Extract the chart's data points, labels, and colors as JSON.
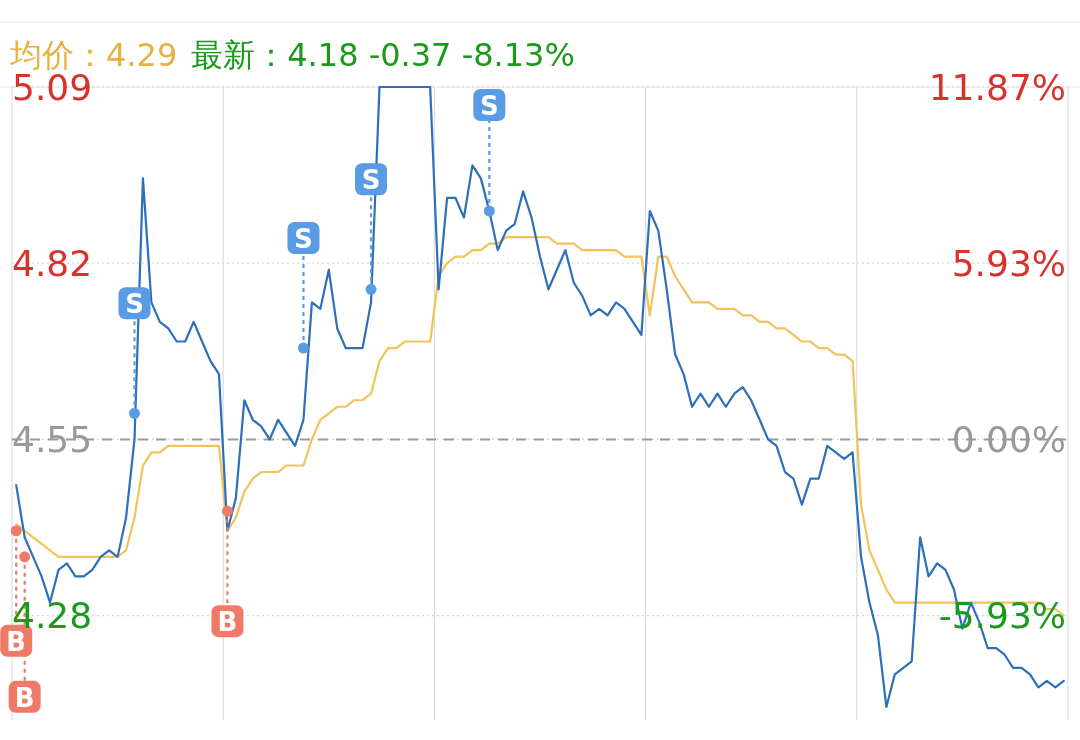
{
  "chart_data": {
    "type": "line",
    "categories": [
      null,
      null,
      null,
      null,
      null,
      null,
      null,
      null,
      null,
      null,
      null,
      null,
      null,
      null,
      null,
      null,
      null,
      null,
      null,
      null,
      null,
      null,
      null,
      null,
      null,
      null,
      null,
      null,
      null,
      null,
      null,
      null,
      null,
      null,
      null,
      null,
      null,
      null,
      null,
      null,
      null,
      null,
      null,
      null,
      null,
      null,
      null,
      null,
      null,
      null,
      null,
      null,
      null,
      null,
      null,
      null,
      null,
      null,
      null,
      null,
      null,
      null,
      null,
      null,
      null,
      null,
      null,
      null,
      null,
      null,
      null,
      null,
      null,
      null,
      null,
      null,
      null,
      null,
      null,
      null,
      null,
      null,
      null,
      null,
      null,
      null,
      null,
      null,
      null,
      null,
      null,
      null,
      null,
      null,
      null,
      null,
      null,
      null,
      null,
      null,
      null,
      null,
      null,
      null,
      null,
      null,
      null,
      null,
      null,
      null,
      null,
      null,
      null,
      null,
      null,
      null,
      null,
      null,
      null,
      null,
      null,
      null,
      null,
      null,
      null
    ],
    "series": [
      {
        "color": "#2c6fbb",
        "values": [
          4.48,
          4.4,
          4.37,
          4.34,
          4.3,
          4.35,
          4.36,
          4.34,
          4.34,
          4.35,
          4.37,
          4.38,
          4.37,
          4.43,
          4.55,
          4.95,
          4.76,
          4.73,
          4.72,
          4.7,
          4.7,
          4.73,
          4.7,
          4.67,
          4.65,
          4.41,
          4.46,
          4.61,
          4.58,
          4.57,
          4.55,
          4.58,
          4.56,
          4.54,
          4.58,
          4.76,
          4.75,
          4.81,
          4.72,
          4.69,
          4.69,
          4.69,
          4.76,
          5.09,
          5.09,
          5.09,
          5.09,
          5.09,
          5.09,
          5.09,
          4.78,
          4.92,
          4.92,
          4.89,
          4.97,
          4.95,
          4.9,
          4.84,
          4.87,
          4.88,
          4.93,
          4.89,
          4.83,
          4.78,
          4.81,
          4.84,
          4.79,
          4.77,
          4.74,
          4.75,
          4.74,
          4.76,
          4.75,
          4.73,
          4.71,
          4.9,
          4.87,
          4.78,
          4.68,
          4.65,
          4.6,
          4.62,
          4.6,
          4.62,
          4.6,
          4.62,
          4.63,
          4.61,
          4.58,
          4.55,
          4.54,
          4.5,
          4.49,
          4.45,
          4.49,
          4.49,
          4.54,
          4.53,
          4.52,
          4.53,
          4.37,
          4.3,
          4.25,
          4.14,
          4.19,
          4.2,
          4.21,
          4.4,
          4.34,
          4.36,
          4.35,
          4.32,
          4.26,
          4.3,
          4.27,
          4.23,
          4.23,
          4.22,
          4.2,
          4.2,
          4.19,
          4.17,
          4.18,
          4.17,
          4.18
        ]
      },
      {
        "color": "#f2c35a",
        "values": [
          4.42,
          4.41,
          4.4,
          4.39,
          4.38,
          4.37,
          4.37,
          4.37,
          4.37,
          4.37,
          4.37,
          4.37,
          4.37,
          4.38,
          4.43,
          4.51,
          4.53,
          4.53,
          4.54,
          4.54,
          4.54,
          4.54,
          4.54,
          4.54,
          4.54,
          4.41,
          4.43,
          4.47,
          4.49,
          4.5,
          4.5,
          4.5,
          4.51,
          4.51,
          4.51,
          4.55,
          4.58,
          4.59,
          4.6,
          4.6,
          4.61,
          4.61,
          4.62,
          4.67,
          4.69,
          4.69,
          4.7,
          4.7,
          4.7,
          4.7,
          4.8,
          4.82,
          4.83,
          4.83,
          4.84,
          4.84,
          4.85,
          4.85,
          4.86,
          4.86,
          4.86,
          4.86,
          4.86,
          4.86,
          4.85,
          4.85,
          4.85,
          4.84,
          4.84,
          4.84,
          4.84,
          4.84,
          4.83,
          4.83,
          4.83,
          4.74,
          4.83,
          4.83,
          4.8,
          4.78,
          4.76,
          4.76,
          4.76,
          4.75,
          4.75,
          4.75,
          4.74,
          4.74,
          4.73,
          4.73,
          4.72,
          4.72,
          4.71,
          4.7,
          4.7,
          4.69,
          4.69,
          4.68,
          4.68,
          4.67,
          4.45,
          4.38,
          4.35,
          4.32,
          4.3,
          4.3,
          4.3,
          4.3,
          4.3,
          4.3,
          4.3,
          4.3,
          4.3,
          4.3,
          4.3,
          4.3,
          4.3,
          4.3,
          4.3,
          4.3,
          4.3,
          4.3,
          4.29,
          4.29,
          4.28
        ]
      },
      {
        "type": "scatter",
        "name": "B",
        "color": "#f07a68",
        "values": [
          4.41,
          4.37,
          null,
          null,
          null,
          null,
          null,
          null,
          null,
          null,
          null,
          null,
          null,
          null,
          null,
          null,
          null,
          null,
          null,
          null,
          null,
          null,
          null,
          null,
          null,
          4.44,
          null,
          null,
          null,
          null,
          null,
          null,
          null,
          null,
          null,
          null,
          null,
          null,
          null,
          null,
          null,
          null,
          null,
          null,
          null,
          null,
          null,
          null,
          null,
          null,
          null,
          null,
          null,
          null,
          null,
          null,
          null,
          null,
          null,
          null,
          null,
          null,
          null,
          null,
          null,
          null,
          null,
          null,
          null,
          null,
          null,
          null,
          null,
          null,
          null,
          null,
          null,
          null,
          null,
          null,
          null,
          null,
          null,
          null,
          null,
          null,
          null,
          null,
          null,
          null,
          null,
          null,
          null,
          null,
          null,
          null,
          null,
          null,
          null,
          null,
          null,
          null,
          null,
          null,
          null,
          null,
          null,
          null,
          null,
          null,
          null,
          null,
          null,
          null,
          null,
          null,
          null,
          null,
          null,
          null,
          null,
          null,
          null,
          null,
          null
        ]
      },
      {
        "type": "scatter",
        "name": "S",
        "color": "#5a9be6",
        "values": [
          null,
          null,
          null,
          null,
          null,
          null,
          null,
          null,
          null,
          null,
          null,
          null,
          null,
          null,
          4.59,
          null,
          null,
          null,
          null,
          null,
          null,
          null,
          null,
          null,
          null,
          null,
          null,
          null,
          null,
          null,
          null,
          null,
          null,
          null,
          4.69,
          null,
          null,
          null,
          null,
          null,
          null,
          null,
          4.78,
          null,
          null,
          null,
          null,
          null,
          null,
          null,
          null,
          null,
          null,
          null,
          null,
          null,
          4.9,
          null,
          null,
          null,
          null,
          null,
          null,
          null,
          null,
          null,
          null,
          null,
          null,
          null,
          null,
          null,
          null,
          null,
          null,
          null,
          null,
          null,
          null,
          null,
          null,
          null,
          null,
          null,
          null,
          null,
          null,
          null,
          null,
          null,
          null,
          null,
          null,
          null,
          null,
          null,
          null,
          null,
          null,
          null,
          null,
          null,
          null,
          null,
          null,
          null,
          null,
          null,
          null,
          null,
          null,
          null,
          null,
          null,
          null,
          null,
          null,
          null,
          null,
          null,
          null,
          null,
          null,
          null,
          null
        ]
      }
    ],
    "annotations": [
      "均价：4.29",
      "最新：4.18  -0.37  -8.13%"
    ],
    "ylim": [
      4.12,
      5.09
    ],
    "yticks": [
      4.28,
      4.55,
      4.82,
      5.09
    ],
    "y2lim": [
      -9.45,
      11.87
    ],
    "y2ticks": [
      {
        "value": -5.93,
        "label": "-5.93%"
      },
      {
        "value": 0,
        "label": "0.00%"
      },
      {
        "value": 5.93,
        "label": "5.93%"
      },
      {
        "value": 11.87,
        "label": "11.87%"
      }
    ],
    "ref_lines": [
      {
        "axis": "y",
        "value": 4.55,
        "color": "#999999",
        "line_style": "dashed"
      }
    ],
    "grid": true
  }
}
